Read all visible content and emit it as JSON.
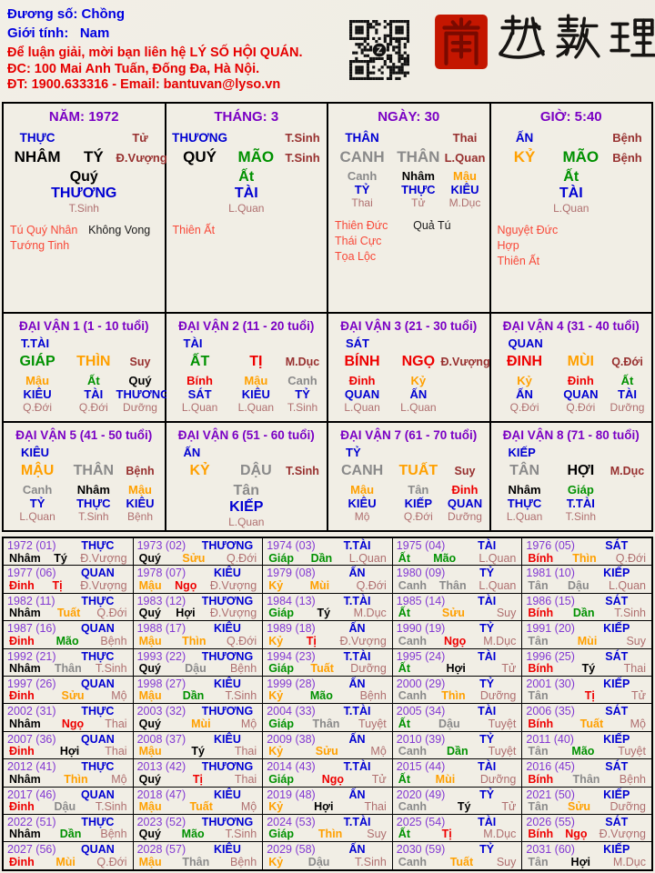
{
  "header": {
    "subject": "Đương số: Chồng",
    "gender": "Giới tính:   Nam",
    "contact1": "Để luận giải, mời bạn liên hệ LÝ SỐ HỘI QUÁN.",
    "contact2": "ĐC: 100 Mai Anh Tuấn, Đống Đa, Hà Nội.",
    "contact3": "ĐT: 1900.633316 - Email: bantuvan@lyso.vn",
    "brand": "南越數理",
    "seal_char": "南",
    "qr_icon": "qr-code"
  },
  "colors": {
    "wood": "#009100",
    "fire": "#ee0000",
    "earth": "#ffa000",
    "metal": "#8a8a8a",
    "water": "#000000",
    "god_blue": "#0000d2",
    "title_purple": "#7a00c4",
    "year_purple": "#8238d2",
    "state_dark": "#97302f",
    "state_rosy": "#af6f6f",
    "star_red": "#f84838",
    "star_black": "#1a1a1a",
    "header_blue": "#0000e0",
    "header_red": "#e60000"
  },
  "pillars": [
    {
      "title": "NĂM: 1972",
      "god": "THỰC",
      "god_state": "Tử",
      "can": "NHÂM",
      "can_el": "water",
      "chi": "TÝ",
      "chi_el": "water",
      "state": "Đ.Vượng",
      "hidden": [
        null,
        {
          "can": "Quý",
          "el": "water",
          "god": "THƯƠNG",
          "state": "T.Sinh"
        },
        null
      ],
      "stars": [
        [
          {
            "t": "Tú Quý Nhân",
            "c": "red"
          },
          {
            "t": "Không Vong",
            "c": "black"
          }
        ],
        [
          {
            "t": "Tướng Tinh",
            "c": "red"
          }
        ]
      ]
    },
    {
      "title": "THÁNG: 3",
      "god": "THƯƠNG",
      "god_state": "T.Sinh",
      "can": "QUÝ",
      "can_el": "water",
      "chi": "MÃO",
      "chi_el": "wood",
      "state": "T.Sinh",
      "hidden": [
        null,
        {
          "can": "Ất",
          "el": "wood",
          "god": "TÀI",
          "state": "L.Quan"
        },
        null
      ],
      "stars": [
        [
          {
            "t": "Thiên Ất",
            "c": "red"
          }
        ]
      ]
    },
    {
      "title": "NGÀY: 30",
      "god": "THÂN",
      "god_state": "Thai",
      "can": "CANH",
      "can_el": "metal",
      "chi": "THÂN",
      "chi_el": "metal",
      "state": "L.Quan",
      "hidden": [
        {
          "can": "Canh",
          "el": "metal",
          "god": "TỶ",
          "state": "Thai"
        },
        {
          "can": "Nhâm",
          "el": "water",
          "god": "THỰC",
          "state": "Tử"
        },
        {
          "can": "Mậu",
          "el": "earth",
          "god": "KIÊU",
          "state": "M.Dục"
        }
      ],
      "stars": [
        [
          {
            "t": "Thiên Đức",
            "c": "red"
          },
          {
            "t": "Quả Tú",
            "c": "black"
          }
        ],
        [
          {
            "t": "Thái Cực",
            "c": "red"
          }
        ],
        [
          {
            "t": "Tọa Lộc",
            "c": "red"
          }
        ]
      ]
    },
    {
      "title": "GIỜ: 5:40",
      "god": "ẤN",
      "god_state": "Bệnh",
      "can": "KỶ",
      "can_el": "earth",
      "chi": "MÃO",
      "chi_el": "wood",
      "state": "Bệnh",
      "hidden": [
        null,
        {
          "can": "Ất",
          "el": "wood",
          "god": "TÀI",
          "state": "L.Quan"
        },
        null
      ],
      "stars": [
        [
          {
            "t": "Nguyệt Đức Hợp",
            "c": "red"
          }
        ],
        [
          {
            "t": "Thiên Ất",
            "c": "red"
          }
        ]
      ]
    }
  ],
  "dai_van": [
    {
      "title": "ĐẠI VẬN 1 (1 - 10 tuổi)",
      "god": "T.TÀI",
      "can": "GIÁP",
      "can_el": "wood",
      "chi": "THÌN",
      "chi_el": "earth",
      "state": "Suy",
      "hidden": [
        {
          "can": "Mậu",
          "el": "earth",
          "god": "KIÊU",
          "state": "Q.Đới"
        },
        {
          "can": "Ất",
          "el": "wood",
          "god": "TÀI",
          "state": "Q.Đới"
        },
        {
          "can": "Quý",
          "el": "water",
          "god": "THƯƠNG",
          "state": "Dưỡng"
        }
      ]
    },
    {
      "title": "ĐẠI VẬN 2 (11 - 20 tuổi)",
      "god": "TÀI",
      "can": "ẤT",
      "can_el": "wood",
      "chi": "TỊ",
      "chi_el": "fire",
      "state": "M.Dục",
      "hidden": [
        {
          "can": "Bính",
          "el": "fire",
          "god": "SÁT",
          "state": "L.Quan"
        },
        {
          "can": "Mậu",
          "el": "earth",
          "god": "KIÊU",
          "state": "L.Quan"
        },
        {
          "can": "Canh",
          "el": "metal",
          "god": "TỶ",
          "state": "T.Sinh"
        }
      ]
    },
    {
      "title": "ĐẠI VẬN 3 (21 - 30 tuổi)",
      "god": "SÁT",
      "can": "BÍNH",
      "can_el": "fire",
      "chi": "NGỌ",
      "chi_el": "fire",
      "state": "Đ.Vượng",
      "hidden": [
        {
          "can": "Đinh",
          "el": "fire",
          "god": "QUAN",
          "state": "L.Quan"
        },
        {
          "can": "Kỷ",
          "el": "earth",
          "god": "ẤN",
          "state": "L.Quan"
        },
        null
      ]
    },
    {
      "title": "ĐẠI VẬN 4 (31 - 40 tuổi)",
      "god": "QUAN",
      "can": "ĐINH",
      "can_el": "fire",
      "chi": "MÙI",
      "chi_el": "earth",
      "state": "Q.Đới",
      "hidden": [
        {
          "can": "Kỷ",
          "el": "earth",
          "god": "ẤN",
          "state": "Q.Đới"
        },
        {
          "can": "Đinh",
          "el": "fire",
          "god": "QUAN",
          "state": "Q.Đới"
        },
        {
          "can": "Ất",
          "el": "wood",
          "god": "TÀI",
          "state": "Dưỡng"
        }
      ]
    },
    {
      "title": "ĐẠI VẬN 5 (41 - 50 tuổi)",
      "god": "KIÊU",
      "can": "MẬU",
      "can_el": "earth",
      "chi": "THÂN",
      "chi_el": "metal",
      "state": "Bệnh",
      "hidden": [
        {
          "can": "Canh",
          "el": "metal",
          "god": "TỶ",
          "state": "L.Quan"
        },
        {
          "can": "Nhâm",
          "el": "water",
          "god": "THỰC",
          "state": "T.Sinh"
        },
        {
          "can": "Mậu",
          "el": "earth",
          "god": "KIÊU",
          "state": "Bệnh"
        }
      ]
    },
    {
      "title": "ĐẠI VẬN 6 (51 - 60 tuổi)",
      "god": "ẤN",
      "can": "KỶ",
      "can_el": "earth",
      "chi": "DẬU",
      "chi_el": "metal",
      "state": "T.Sinh",
      "hidden": [
        null,
        {
          "can": "Tân",
          "el": "metal",
          "god": "KIẾP",
          "state": "L.Quan"
        },
        null
      ]
    },
    {
      "title": "ĐẠI VẬN 7 (61 - 70 tuổi)",
      "god": "TỶ",
      "can": "CANH",
      "can_el": "metal",
      "chi": "TUẤT",
      "chi_el": "earth",
      "state": "Suy",
      "hidden": [
        {
          "can": "Mậu",
          "el": "earth",
          "god": "KIÊU",
          "state": "Mộ"
        },
        {
          "can": "Tân",
          "el": "metal",
          "god": "KIẾP",
          "state": "Q.Đới"
        },
        {
          "can": "Đinh",
          "el": "fire",
          "god": "QUAN",
          "state": "Dưỡng"
        }
      ]
    },
    {
      "title": "ĐẠI VẬN 8 (71 - 80 tuổi)",
      "god": "KIẾP",
      "can": "TÂN",
      "can_el": "metal",
      "chi": "HỢI",
      "chi_el": "water",
      "state": "M.Dục",
      "hidden": [
        {
          "can": "Nhâm",
          "el": "water",
          "god": "THỰC",
          "state": "L.Quan"
        },
        {
          "can": "Giáp",
          "el": "wood",
          "god": "T.TÀI",
          "state": "T.Sinh"
        },
        null
      ]
    }
  ],
  "year_table": [
    [
      {
        "y": "1972 (01)",
        "god": "THỰC",
        "can": "Nhâm",
        "ce": "water",
        "chi": "Tý",
        "che": "water",
        "st": "Đ.Vượng"
      },
      {
        "y": "1973 (02)",
        "god": "THƯƠNG",
        "can": "Quý",
        "ce": "water",
        "chi": "Sửu",
        "che": "earth",
        "st": "Q.Đới"
      },
      {
        "y": "1974 (03)",
        "god": "T.TÀI",
        "can": "Giáp",
        "ce": "wood",
        "chi": "Dần",
        "che": "wood",
        "st": "L.Quan"
      },
      {
        "y": "1975 (04)",
        "god": "TÀI",
        "can": "Ất",
        "ce": "wood",
        "chi": "Mão",
        "che": "wood",
        "st": "L.Quan"
      },
      {
        "y": "1976 (05)",
        "god": "SÁT",
        "can": "Bính",
        "ce": "fire",
        "chi": "Thìn",
        "che": "earth",
        "st": "Q.Đới"
      }
    ],
    [
      {
        "y": "1977 (06)",
        "god": "QUAN",
        "can": "Đinh",
        "ce": "fire",
        "chi": "Tị",
        "che": "fire",
        "st": "Đ.Vượng"
      },
      {
        "y": "1978 (07)",
        "god": "KIÊU",
        "can": "Mậu",
        "ce": "earth",
        "chi": "Ngọ",
        "che": "fire",
        "st": "Đ.Vượng"
      },
      {
        "y": "1979 (08)",
        "god": "ẤN",
        "can": "Kỷ",
        "ce": "earth",
        "chi": "Mùi",
        "che": "earth",
        "st": "Q.Đới"
      },
      {
        "y": "1980 (09)",
        "god": "TỶ",
        "can": "Canh",
        "ce": "metal",
        "chi": "Thân",
        "che": "metal",
        "st": "L.Quan"
      },
      {
        "y": "1981 (10)",
        "god": "KIẾP",
        "can": "Tân",
        "ce": "metal",
        "chi": "Dậu",
        "che": "metal",
        "st": "L.Quan"
      }
    ],
    [
      {
        "y": "1982 (11)",
        "god": "THỰC",
        "can": "Nhâm",
        "ce": "water",
        "chi": "Tuất",
        "che": "earth",
        "st": "Q.Đới"
      },
      {
        "y": "1983 (12)",
        "god": "THƯƠNG",
        "can": "Quý",
        "ce": "water",
        "chi": "Hợi",
        "che": "water",
        "st": "Đ.Vượng"
      },
      {
        "y": "1984 (13)",
        "god": "T.TÀI",
        "can": "Giáp",
        "ce": "wood",
        "chi": "Tý",
        "che": "water",
        "st": "M.Dục"
      },
      {
        "y": "1985 (14)",
        "god": "TÀI",
        "can": "Ất",
        "ce": "wood",
        "chi": "Sửu",
        "che": "earth",
        "st": "Suy"
      },
      {
        "y": "1986 (15)",
        "god": "SÁT",
        "can": "Bính",
        "ce": "fire",
        "chi": "Dần",
        "che": "wood",
        "st": "T.Sinh"
      }
    ],
    [
      {
        "y": "1987 (16)",
        "god": "QUAN",
        "can": "Đinh",
        "ce": "fire",
        "chi": "Mão",
        "che": "wood",
        "st": "Bệnh"
      },
      {
        "y": "1988 (17)",
        "god": "KIÊU",
        "can": "Mậu",
        "ce": "earth",
        "chi": "Thìn",
        "che": "earth",
        "st": "Q.Đới"
      },
      {
        "y": "1989 (18)",
        "god": "ẤN",
        "can": "Kỷ",
        "ce": "earth",
        "chi": "Tị",
        "che": "fire",
        "st": "Đ.Vượng"
      },
      {
        "y": "1990 (19)",
        "god": "TỶ",
        "can": "Canh",
        "ce": "metal",
        "chi": "Ngọ",
        "che": "fire",
        "st": "M.Dục"
      },
      {
        "y": "1991 (20)",
        "god": "KIẾP",
        "can": "Tân",
        "ce": "metal",
        "chi": "Mùi",
        "che": "earth",
        "st": "Suy"
      }
    ],
    [
      {
        "y": "1992 (21)",
        "god": "THỰC",
        "can": "Nhâm",
        "ce": "water",
        "chi": "Thân",
        "che": "metal",
        "st": "T.Sinh"
      },
      {
        "y": "1993 (22)",
        "god": "THƯƠNG",
        "can": "Quý",
        "ce": "water",
        "chi": "Dậu",
        "che": "metal",
        "st": "Bệnh"
      },
      {
        "y": "1994 (23)",
        "god": "T.TÀI",
        "can": "Giáp",
        "ce": "wood",
        "chi": "Tuất",
        "che": "earth",
        "st": "Dưỡng"
      },
      {
        "y": "1995 (24)",
        "god": "TÀI",
        "can": "Ất",
        "ce": "wood",
        "chi": "Hợi",
        "che": "water",
        "st": "Tử"
      },
      {
        "y": "1996 (25)",
        "god": "SÁT",
        "can": "Bính",
        "ce": "fire",
        "chi": "Tý",
        "che": "water",
        "st": "Thai"
      }
    ],
    [
      {
        "y": "1997 (26)",
        "god": "QUAN",
        "can": "Đinh",
        "ce": "fire",
        "chi": "Sửu",
        "che": "earth",
        "st": "Mộ"
      },
      {
        "y": "1998 (27)",
        "god": "KIÊU",
        "can": "Mậu",
        "ce": "earth",
        "chi": "Dần",
        "che": "wood",
        "st": "T.Sinh"
      },
      {
        "y": "1999 (28)",
        "god": "ẤN",
        "can": "Kỷ",
        "ce": "earth",
        "chi": "Mão",
        "che": "wood",
        "st": "Bệnh"
      },
      {
        "y": "2000 (29)",
        "god": "TỶ",
        "can": "Canh",
        "ce": "metal",
        "chi": "Thìn",
        "che": "earth",
        "st": "Dưỡng"
      },
      {
        "y": "2001 (30)",
        "god": "KIẾP",
        "can": "Tân",
        "ce": "metal",
        "chi": "Tị",
        "che": "fire",
        "st": "Tử"
      }
    ],
    [
      {
        "y": "2002 (31)",
        "god": "THỰC",
        "can": "Nhâm",
        "ce": "water",
        "chi": "Ngọ",
        "che": "fire",
        "st": "Thai"
      },
      {
        "y": "2003 (32)",
        "god": "THƯƠNG",
        "can": "Quý",
        "ce": "water",
        "chi": "Mùi",
        "che": "earth",
        "st": "Mộ"
      },
      {
        "y": "2004 (33)",
        "god": "T.TÀI",
        "can": "Giáp",
        "ce": "wood",
        "chi": "Thân",
        "che": "metal",
        "st": "Tuyệt"
      },
      {
        "y": "2005 (34)",
        "god": "TÀI",
        "can": "Ất",
        "ce": "wood",
        "chi": "Dậu",
        "che": "metal",
        "st": "Tuyệt"
      },
      {
        "y": "2006 (35)",
        "god": "SÁT",
        "can": "Bính",
        "ce": "fire",
        "chi": "Tuất",
        "che": "earth",
        "st": "Mộ"
      }
    ],
    [
      {
        "y": "2007 (36)",
        "god": "QUAN",
        "can": "Đinh",
        "ce": "fire",
        "chi": "Hợi",
        "che": "water",
        "st": "Thai"
      },
      {
        "y": "2008 (37)",
        "god": "KIÊU",
        "can": "Mậu",
        "ce": "earth",
        "chi": "Tý",
        "che": "water",
        "st": "Thai"
      },
      {
        "y": "2009 (38)",
        "god": "ẤN",
        "can": "Kỷ",
        "ce": "earth",
        "chi": "Sửu",
        "che": "earth",
        "st": "Mộ"
      },
      {
        "y": "2010 (39)",
        "god": "TỶ",
        "can": "Canh",
        "ce": "metal",
        "chi": "Dần",
        "che": "wood",
        "st": "Tuyệt"
      },
      {
        "y": "2011 (40)",
        "god": "KIẾP",
        "can": "Tân",
        "ce": "metal",
        "chi": "Mão",
        "che": "wood",
        "st": "Tuyệt"
      }
    ],
    [
      {
        "y": "2012 (41)",
        "god": "THỰC",
        "can": "Nhâm",
        "ce": "water",
        "chi": "Thìn",
        "che": "earth",
        "st": "Mộ"
      },
      {
        "y": "2013 (42)",
        "god": "THƯƠNG",
        "can": "Quý",
        "ce": "water",
        "chi": "Tị",
        "che": "fire",
        "st": "Thai"
      },
      {
        "y": "2014 (43)",
        "god": "T.TÀI",
        "can": "Giáp",
        "ce": "wood",
        "chi": "Ngọ",
        "che": "fire",
        "st": "Tử"
      },
      {
        "y": "2015 (44)",
        "god": "TÀI",
        "can": "Ất",
        "ce": "wood",
        "chi": "Mùi",
        "che": "earth",
        "st": "Dưỡng"
      },
      {
        "y": "2016 (45)",
        "god": "SÁT",
        "can": "Bính",
        "ce": "fire",
        "chi": "Thân",
        "che": "metal",
        "st": "Bệnh"
      }
    ],
    [
      {
        "y": "2017 (46)",
        "god": "QUAN",
        "can": "Đinh",
        "ce": "fire",
        "chi": "Dậu",
        "che": "metal",
        "st": "T.Sinh"
      },
      {
        "y": "2018 (47)",
        "god": "KIÊU",
        "can": "Mậu",
        "ce": "earth",
        "chi": "Tuất",
        "che": "earth",
        "st": "Mộ"
      },
      {
        "y": "2019 (48)",
        "god": "ẤN",
        "can": "Kỷ",
        "ce": "earth",
        "chi": "Hợi",
        "che": "water",
        "st": "Thai"
      },
      {
        "y": "2020 (49)",
        "god": "TỶ",
        "can": "Canh",
        "ce": "metal",
        "chi": "Tý",
        "che": "water",
        "st": "Tử"
      },
      {
        "y": "2021 (50)",
        "god": "KIẾP",
        "can": "Tân",
        "ce": "metal",
        "chi": "Sửu",
        "che": "earth",
        "st": "Dưỡng"
      }
    ],
    [
      {
        "y": "2022 (51)",
        "god": "THỰC",
        "can": "Nhâm",
        "ce": "water",
        "chi": "Dần",
        "che": "wood",
        "st": "Bệnh"
      },
      {
        "y": "2023 (52)",
        "god": "THƯƠNG",
        "can": "Quý",
        "ce": "water",
        "chi": "Mão",
        "che": "wood",
        "st": "T.Sinh"
      },
      {
        "y": "2024 (53)",
        "god": "T.TÀI",
        "can": "Giáp",
        "ce": "wood",
        "chi": "Thìn",
        "che": "earth",
        "st": "Suy"
      },
      {
        "y": "2025 (54)",
        "god": "TÀI",
        "can": "Ất",
        "ce": "wood",
        "chi": "Tị",
        "che": "fire",
        "st": "M.Dục"
      },
      {
        "y": "2026 (55)",
        "god": "SÁT",
        "can": "Bính",
        "ce": "fire",
        "chi": "Ngọ",
        "che": "fire",
        "st": "Đ.Vượng"
      }
    ],
    [
      {
        "y": "2027 (56)",
        "god": "QUAN",
        "can": "Đinh",
        "ce": "fire",
        "chi": "Mùi",
        "che": "earth",
        "st": "Q.Đới"
      },
      {
        "y": "2028 (57)",
        "god": "KIÊU",
        "can": "Mậu",
        "ce": "earth",
        "chi": "Thân",
        "che": "metal",
        "st": "Bệnh"
      },
      {
        "y": "2029 (58)",
        "god": "ẤN",
        "can": "Kỷ",
        "ce": "earth",
        "chi": "Dậu",
        "che": "metal",
        "st": "T.Sinh"
      },
      {
        "y": "2030 (59)",
        "god": "TỶ",
        "can": "Canh",
        "ce": "metal",
        "chi": "Tuất",
        "che": "earth",
        "st": "Suy"
      },
      {
        "y": "2031 (60)",
        "god": "KIẾP",
        "can": "Tân",
        "ce": "metal",
        "chi": "Hợi",
        "che": "water",
        "st": "M.Dục"
      }
    ]
  ]
}
